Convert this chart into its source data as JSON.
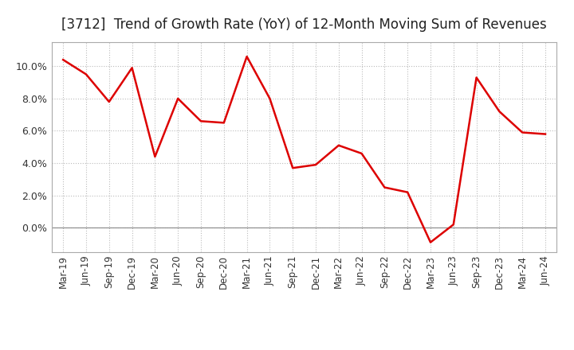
{
  "title": "[3712]  Trend of Growth Rate (YoY) of 12-Month Moving Sum of Revenues",
  "title_fontsize": 12,
  "line_color": "#dd0000",
  "line_width": 1.8,
  "background_color": "#ffffff",
  "grid_color": "#bbbbbb",
  "x_labels": [
    "Mar-19",
    "Jun-19",
    "Sep-19",
    "Dec-19",
    "Mar-20",
    "Jun-20",
    "Sep-20",
    "Dec-20",
    "Mar-21",
    "Jun-21",
    "Sep-21",
    "Dec-21",
    "Mar-22",
    "Jun-22",
    "Sep-22",
    "Dec-22",
    "Mar-23",
    "Jun-23",
    "Sep-23",
    "Dec-23",
    "Mar-24",
    "Jun-24"
  ],
  "y_values": [
    10.4,
    9.5,
    7.8,
    9.9,
    4.4,
    8.0,
    6.6,
    6.5,
    10.6,
    8.0,
    3.7,
    3.9,
    5.1,
    4.6,
    2.5,
    2.2,
    -0.9,
    0.2,
    9.3,
    7.2,
    5.9,
    5.8
  ],
  "ylim_min": -1.5,
  "ylim_max": 11.5,
  "yticks": [
    0.0,
    2.0,
    4.0,
    6.0,
    8.0,
    10.0
  ]
}
